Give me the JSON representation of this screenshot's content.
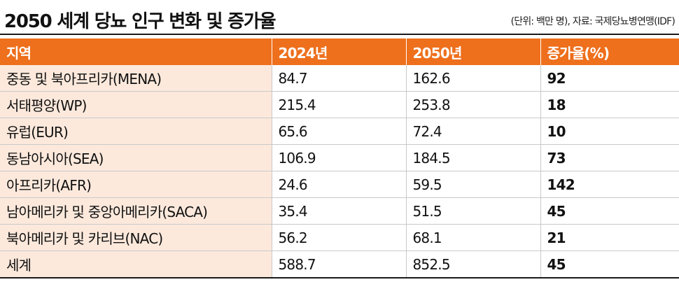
{
  "title": "2050 세계 당뇨 인구 변화 및 증가율",
  "source_note": "(단위: 백만 명), 자료: 국제당뇨병연맹(IDF)",
  "colors": {
    "header_bg": "#ee6f1c",
    "first_col_bg": "#fce9dc"
  },
  "table": {
    "headers": [
      "지역",
      "2024년",
      "2050년",
      "증가율(%)"
    ],
    "rows": [
      [
        "중동 및 북아프리카(MENA)",
        "84.7",
        "162.6",
        "92"
      ],
      [
        "서태평양(WP)",
        "215.4",
        "253.8",
        "18"
      ],
      [
        "유럽(EUR)",
        "65.6",
        "72.4",
        "10"
      ],
      [
        "동남아시아(SEA)",
        "106.9",
        "184.5",
        "73"
      ],
      [
        "아프리카(AFR)",
        "24.6",
        "59.5",
        "142"
      ],
      [
        "남아메리카 및 중앙아메리카(SACA)",
        "35.4",
        "51.5",
        "45"
      ],
      [
        "북아메리카 및 카리브(NAC)",
        "56.2",
        "68.1",
        "21"
      ],
      [
        "세계",
        "588.7",
        "852.5",
        "45"
      ]
    ]
  }
}
